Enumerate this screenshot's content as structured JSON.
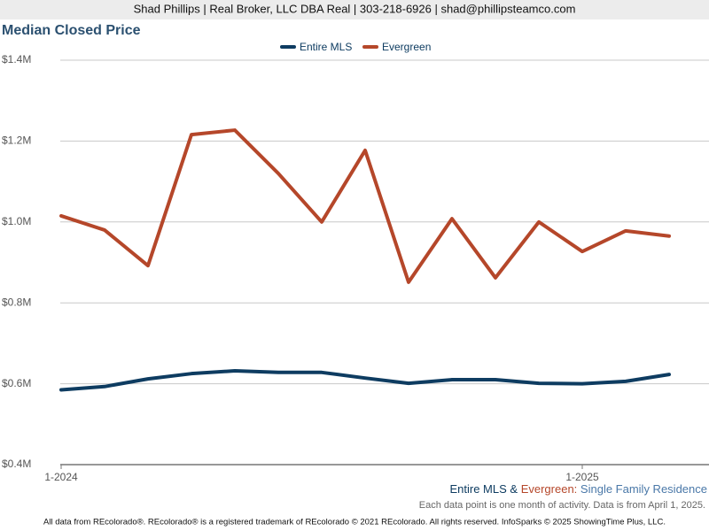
{
  "header": {
    "text": "Shad Phillips | Real Broker, LLC DBA Real | 303-218-6926 | shad@phillipsteamco.com"
  },
  "chart_data": {
    "type": "line",
    "title": "Median Closed Price",
    "categories": [
      "1-2024",
      null,
      null,
      null,
      null,
      null,
      null,
      null,
      null,
      null,
      null,
      null,
      "1-2025",
      null,
      null
    ],
    "series": [
      {
        "name": "Entire MLS",
        "color": "#0e3c61",
        "values": [
          585000,
          593000,
          612000,
          625000,
          632000,
          628000,
          628000,
          614000,
          601000,
          610000,
          610000,
          601000,
          600000,
          606000,
          623000
        ]
      },
      {
        "name": "Evergreen",
        "color": "#b5472a",
        "values": [
          1015000,
          980000,
          892000,
          1216000,
          1227000,
          1120000,
          1000000,
          1177000,
          851000,
          1008000,
          862000,
          1000000,
          927000,
          978000,
          965000
        ]
      }
    ],
    "ylim": [
      400000,
      1400000
    ],
    "yticks": [
      {
        "value": 400000,
        "label": "$0.4M"
      },
      {
        "value": 600000,
        "label": "$0.6M"
      },
      {
        "value": 800000,
        "label": "$0.8M"
      },
      {
        "value": 1000000,
        "label": "$1.0M"
      },
      {
        "value": 1200000,
        "label": "$1.2M"
      },
      {
        "value": 1400000,
        "label": "$1.4M"
      }
    ],
    "grid": true,
    "legend": "top",
    "note": {
      "series_a": "Entire MLS",
      "joiner": "&",
      "series_b": "Evergreen:",
      "property_type": "Single Family Residence"
    },
    "caption": "Each data point is one month of activity. Data is from April 1, 2025."
  },
  "footer": {
    "text": "All data from REcolorado®. REcolorado® is a registered trademark of REcolorado © 2021 REcolorado. All rights reserved. InfoSparks © 2025 ShowingTime Plus, LLC."
  }
}
